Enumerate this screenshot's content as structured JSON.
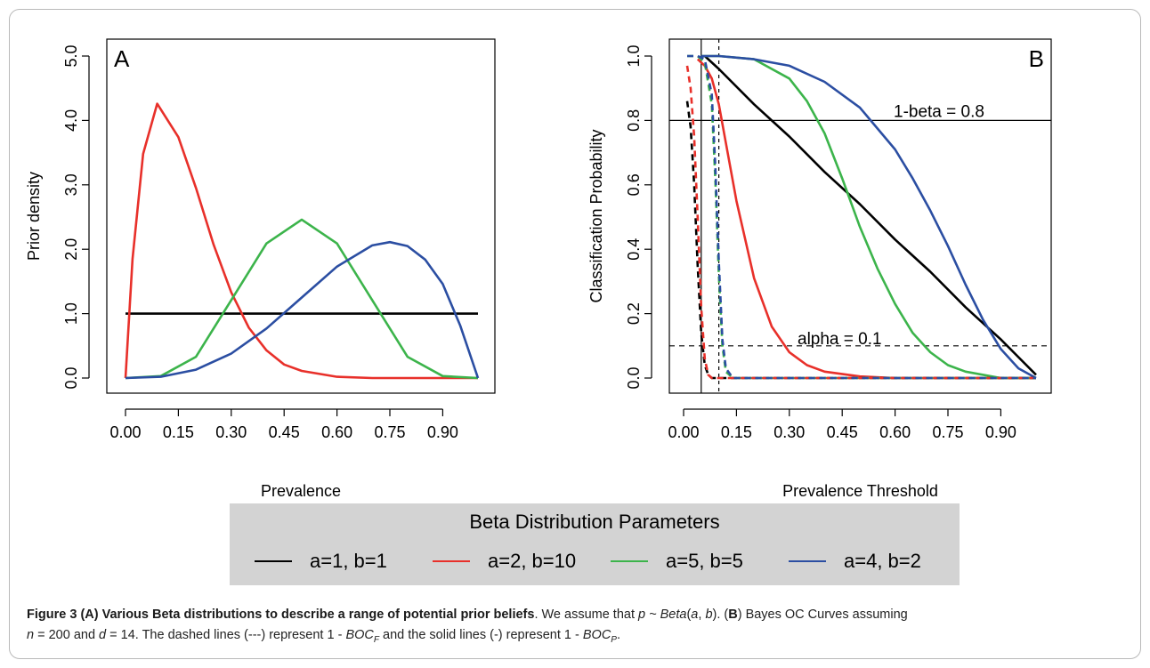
{
  "chart_data": [
    {
      "panel": "A",
      "type": "line",
      "xlabel": "Prevalence",
      "ylabel": "Prior density",
      "xlim": [
        0,
        1
      ],
      "ylim": [
        0,
        5
      ],
      "xticks": [
        "0.00",
        "0.15",
        "0.30",
        "0.45",
        "0.60",
        "0.75",
        "0.90"
      ],
      "yticks": [
        "0.0",
        "1.0",
        "2.0",
        "3.0",
        "4.0",
        "5.0"
      ],
      "series": [
        {
          "name": "a=1, b=1",
          "color": "#000000",
          "x": [
            0,
            0.1,
            0.2,
            0.3,
            0.4,
            0.5,
            0.6,
            0.7,
            0.8,
            0.9,
            1.0
          ],
          "y": [
            1,
            1,
            1,
            1,
            1,
            1,
            1,
            1,
            1,
            1,
            1
          ]
        },
        {
          "name": "a=2, b=10",
          "color": "#e8302a",
          "x": [
            0,
            0.02,
            0.05,
            0.09,
            0.15,
            0.2,
            0.25,
            0.3,
            0.35,
            0.4,
            0.45,
            0.5,
            0.6,
            0.7,
            1.0
          ],
          "y": [
            0,
            1.85,
            3.48,
            4.26,
            3.74,
            2.95,
            2.07,
            1.33,
            0.78,
            0.43,
            0.21,
            0.11,
            0.02,
            0.0,
            0.0
          ]
        },
        {
          "name": "a=5, b=5",
          "color": "#3cb44b",
          "x": [
            0,
            0.1,
            0.2,
            0.3,
            0.4,
            0.5,
            0.6,
            0.7,
            0.8,
            0.9,
            1.0
          ],
          "y": [
            0,
            0.03,
            0.33,
            1.21,
            2.09,
            2.46,
            2.09,
            1.21,
            0.33,
            0.03,
            0
          ]
        },
        {
          "name": "a=4, b=2",
          "color": "#2b4ea2",
          "x": [
            0,
            0.1,
            0.2,
            0.3,
            0.4,
            0.5,
            0.6,
            0.7,
            0.75,
            0.8,
            0.85,
            0.9,
            0.95,
            1.0
          ],
          "y": [
            0,
            0.02,
            0.13,
            0.38,
            0.77,
            1.25,
            1.73,
            2.06,
            2.11,
            2.05,
            1.84,
            1.46,
            0.81,
            0
          ]
        }
      ]
    },
    {
      "panel": "B",
      "type": "line",
      "xlabel": "Prevalence Threshold",
      "ylabel": "Classification Probability",
      "xlim": [
        0,
        1
      ],
      "ylim": [
        0,
        1
      ],
      "xticks": [
        "0.00",
        "0.15",
        "0.30",
        "0.45",
        "0.60",
        "0.75",
        "0.90"
      ],
      "yticks": [
        "0.0",
        "0.2",
        "0.4",
        "0.6",
        "0.8",
        "1.0"
      ],
      "hlines": [
        {
          "y": 0.8,
          "style": "solid",
          "label": "1-beta = 0.8"
        },
        {
          "y": 0.1,
          "style": "dashed",
          "label": "alpha = 0.1"
        }
      ],
      "vlines": [
        {
          "x": 0.05,
          "style": "solid"
        },
        {
          "x": 0.1,
          "style": "dashed"
        }
      ],
      "series": [
        {
          "name": "a=1, b=1 (solid)",
          "color": "#000000",
          "dash": false,
          "x": [
            0.06,
            0.1,
            0.2,
            0.3,
            0.4,
            0.5,
            0.6,
            0.7,
            0.8,
            0.9,
            1.0
          ],
          "y": [
            1.0,
            0.96,
            0.85,
            0.75,
            0.64,
            0.54,
            0.43,
            0.33,
            0.22,
            0.12,
            0.01
          ]
        },
        {
          "name": "a=2, b=10 (solid)",
          "color": "#e8302a",
          "dash": false,
          "x": [
            0.04,
            0.06,
            0.08,
            0.1,
            0.12,
            0.15,
            0.2,
            0.25,
            0.3,
            0.35,
            0.4,
            0.5,
            0.6,
            1.0
          ],
          "y": [
            0.99,
            0.97,
            0.93,
            0.85,
            0.73,
            0.55,
            0.31,
            0.16,
            0.08,
            0.04,
            0.02,
            0.005,
            0.0,
            0.0
          ]
        },
        {
          "name": "a=5, b=5 (solid)",
          "color": "#3cb44b",
          "dash": false,
          "x": [
            0.05,
            0.1,
            0.2,
            0.3,
            0.35,
            0.4,
            0.45,
            0.5,
            0.55,
            0.6,
            0.65,
            0.7,
            0.75,
            0.8,
            0.9,
            1.0
          ],
          "y": [
            1.0,
            1.0,
            0.99,
            0.93,
            0.86,
            0.76,
            0.62,
            0.47,
            0.34,
            0.23,
            0.14,
            0.08,
            0.04,
            0.02,
            0.0,
            0.0
          ]
        },
        {
          "name": "a=4, b=2 (solid)",
          "color": "#2b4ea2",
          "dash": false,
          "x": [
            0.05,
            0.1,
            0.2,
            0.3,
            0.4,
            0.5,
            0.6,
            0.65,
            0.7,
            0.75,
            0.8,
            0.85,
            0.9,
            0.95,
            1.0
          ],
          "y": [
            1.0,
            1.0,
            0.99,
            0.97,
            0.92,
            0.84,
            0.71,
            0.62,
            0.52,
            0.41,
            0.29,
            0.18,
            0.09,
            0.03,
            0.0
          ]
        },
        {
          "name": "a=1, b=1 (dashed)",
          "color": "#000000",
          "dash": true,
          "x": [
            0.01,
            0.02,
            0.03,
            0.04,
            0.05,
            0.06,
            0.07,
            0.08,
            0.1,
            0.5,
            1.0
          ],
          "y": [
            0.86,
            0.78,
            0.6,
            0.35,
            0.14,
            0.04,
            0.01,
            0.0,
            0.0,
            0.0,
            0.0
          ]
        },
        {
          "name": "a=2, b=10 (dashed)",
          "color": "#e8302a",
          "dash": true,
          "x": [
            0.01,
            0.02,
            0.03,
            0.04,
            0.05,
            0.06,
            0.07,
            0.08,
            0.1,
            0.5,
            1.0
          ],
          "y": [
            0.97,
            0.9,
            0.75,
            0.5,
            0.22,
            0.06,
            0.01,
            0.0,
            0.0,
            0.0,
            0.0
          ]
        },
        {
          "name": "a=5, b=5 (dashed)",
          "color": "#3cb44b",
          "dash": true,
          "x": [
            0.01,
            0.04,
            0.06,
            0.08,
            0.09,
            0.1,
            0.11,
            0.12,
            0.14,
            0.5,
            1.0
          ],
          "y": [
            1.0,
            1.0,
            0.98,
            0.85,
            0.62,
            0.32,
            0.1,
            0.02,
            0.0,
            0.0,
            0.0
          ]
        },
        {
          "name": "a=4, b=2 (dashed)",
          "color": "#2b4ea2",
          "dash": true,
          "x": [
            0.01,
            0.04,
            0.06,
            0.08,
            0.09,
            0.1,
            0.11,
            0.12,
            0.14,
            0.5,
            1.0
          ],
          "y": [
            1.0,
            1.0,
            0.99,
            0.88,
            0.66,
            0.36,
            0.12,
            0.03,
            0.0,
            0.0,
            0.0
          ]
        }
      ]
    }
  ],
  "panels": {
    "a": {
      "letter": "A"
    },
    "b": {
      "letter": "B",
      "hline_top_label": "1-beta = 0.8",
      "hline_bottom_label": "alpha = 0.1"
    }
  },
  "legend": {
    "title": "Beta Distribution Parameters",
    "items": [
      {
        "label": "a=1, b=1",
        "color": "#000000"
      },
      {
        "label": "a=2, b=10",
        "color": "#e8302a"
      },
      {
        "label": "a=5, b=5",
        "color": "#3cb44b"
      },
      {
        "label": "a=4, b=2",
        "color": "#2b4ea2"
      }
    ]
  },
  "caption": {
    "figure_label": "Figure 3",
    "bold_title": "(A) Various Beta distributions to describe a range of potential prior beliefs",
    "t1": ". We assume that ",
    "t2": "p ~ Beta",
    "t3": "(",
    "t4": "a",
    "t5": ", ",
    "t6": "b",
    "t7": "). (",
    "t8": "B",
    "t9": ") Bayes OC Curves assuming",
    "t10": "n",
    "t11": " = 200 and ",
    "t12": "d",
    "t13": " = 14. The dashed lines (---) represent 1 - ",
    "t14": "BOC",
    "t15": "F",
    "t16": " and the solid lines (-) represent 1 - ",
    "t17": "BOC",
    "t18": "P",
    "t19": "."
  }
}
